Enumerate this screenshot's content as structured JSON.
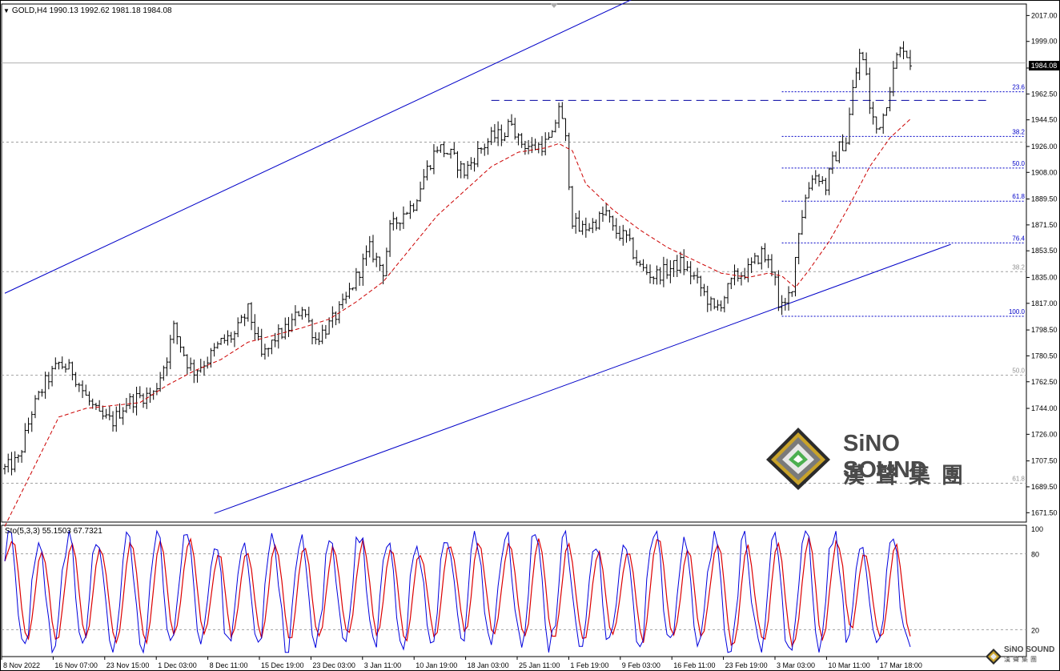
{
  "header": {
    "symbol": "GOLD,H4",
    "open": "1990.13",
    "high": "1992.62",
    "low": "1981.18",
    "close": "1984.08",
    "last_price_label": "1984.08"
  },
  "oscillator": {
    "label": "Sto(5,3,3) 55.1503 67.7321",
    "levels": [
      "100",
      "80",
      "20"
    ]
  },
  "colors": {
    "background": "#ffffff",
    "bars": "#000000",
    "moving_average": "#cc0000",
    "trend_channel": "#0000c8",
    "fib_lines": "#0000c8",
    "grid_fib": "#a0a0a0",
    "stoch_main": "#0000dd",
    "stoch_signal": "#dd0000"
  },
  "chart_data": {
    "type": "ohlc",
    "title": "",
    "xlabel": "",
    "ylabel": "",
    "ylim": [
      1665,
      2025
    ],
    "price_ticks": [
      "2017.00",
      "1999.00",
      "1980.50",
      "1962.50",
      "1944.50",
      "1926.00",
      "1908.00",
      "1889.50",
      "1871.50",
      "1853.50",
      "1835.00",
      "1817.00",
      "1798.50",
      "1780.50",
      "1762.50",
      "1744.00",
      "1726.00",
      "1707.50",
      "1689.50",
      "1671.50"
    ],
    "x_labels": [
      "8 Nov 2022",
      "16 Nov 07:00",
      "23 Nov 15:00",
      "1 Dec 03:00",
      "8 Dec 11:00",
      "15 Dec 19:00",
      "23 Dec 03:00",
      "3 Jan 11:00",
      "10 Jan 19:00",
      "18 Jan 03:00",
      "25 Jan 11:00",
      "1 Feb 19:00",
      "9 Feb 03:00",
      "16 Feb 11:00",
      "23 Feb 19:00",
      "3 Mar 03:00",
      "10 Mar 11:00",
      "17 Mar 18:00"
    ],
    "price_path": [
      [
        0,
        1702
      ],
      [
        4,
        1708
      ],
      [
        8,
        1742
      ],
      [
        12,
        1762
      ],
      [
        16,
        1775
      ],
      [
        20,
        1770
      ],
      [
        24,
        1752
      ],
      [
        28,
        1738
      ],
      [
        32,
        1735
      ],
      [
        36,
        1748
      ],
      [
        40,
        1752
      ],
      [
        44,
        1754
      ],
      [
        48,
        1780
      ],
      [
        50,
        1800
      ],
      [
        54,
        1776
      ],
      [
        56,
        1770
      ],
      [
        60,
        1778
      ],
      [
        64,
        1790
      ],
      [
        68,
        1795
      ],
      [
        72,
        1812
      ],
      [
        74,
        1798
      ],
      [
        76,
        1780
      ],
      [
        78,
        1785
      ],
      [
        80,
        1793
      ],
      [
        84,
        1800
      ],
      [
        88,
        1815
      ],
      [
        92,
        1792
      ],
      [
        96,
        1802
      ],
      [
        100,
        1815
      ],
      [
        104,
        1835
      ],
      [
        108,
        1855
      ],
      [
        112,
        1840
      ],
      [
        114,
        1868
      ],
      [
        118,
        1880
      ],
      [
        121,
        1886
      ],
      [
        124,
        1905
      ],
      [
        128,
        1926
      ],
      [
        132,
        1920
      ],
      [
        136,
        1908
      ],
      [
        140,
        1922
      ],
      [
        144,
        1932
      ],
      [
        148,
        1935
      ],
      [
        150,
        1945
      ],
      [
        152,
        1930
      ],
      [
        156,
        1925
      ],
      [
        160,
        1928
      ],
      [
        162,
        1932
      ],
      [
        164,
        1955
      ],
      [
        166,
        1930
      ],
      [
        168,
        1875
      ],
      [
        170,
        1868
      ],
      [
        174,
        1872
      ],
      [
        178,
        1880
      ],
      [
        180,
        1868
      ],
      [
        184,
        1862
      ],
      [
        188,
        1842
      ],
      [
        192,
        1836
      ],
      [
        196,
        1840
      ],
      [
        200,
        1845
      ],
      [
        204,
        1835
      ],
      [
        208,
        1820
      ],
      [
        210,
        1812
      ],
      [
        212,
        1818
      ],
      [
        216,
        1835
      ],
      [
        220,
        1840
      ],
      [
        224,
        1852
      ],
      [
        228,
        1838
      ],
      [
        229,
        1812
      ],
      [
        231,
        1815
      ],
      [
        233,
        1830
      ],
      [
        235,
        1868
      ],
      [
        237,
        1890
      ],
      [
        239,
        1906
      ],
      [
        241,
        1905
      ],
      [
        243,
        1898
      ],
      [
        245,
        1915
      ],
      [
        247,
        1925
      ],
      [
        249,
        1930
      ],
      [
        251,
        1965
      ],
      [
        253,
        1990
      ],
      [
        255,
        1978
      ],
      [
        256,
        1952
      ],
      [
        258,
        1938
      ],
      [
        260,
        1948
      ],
      [
        262,
        1968
      ],
      [
        264,
        1988
      ],
      [
        266,
        1996
      ],
      [
        268,
        1984
      ]
    ],
    "moving_average": [
      [
        0,
        1662
      ],
      [
        8,
        1700
      ],
      [
        16,
        1738
      ],
      [
        24,
        1744
      ],
      [
        32,
        1746
      ],
      [
        40,
        1748
      ],
      [
        48,
        1760
      ],
      [
        56,
        1770
      ],
      [
        64,
        1778
      ],
      [
        72,
        1790
      ],
      [
        80,
        1795
      ],
      [
        88,
        1800
      ],
      [
        96,
        1806
      ],
      [
        104,
        1818
      ],
      [
        112,
        1832
      ],
      [
        120,
        1855
      ],
      [
        128,
        1878
      ],
      [
        136,
        1895
      ],
      [
        144,
        1912
      ],
      [
        152,
        1922
      ],
      [
        160,
        1925
      ],
      [
        164,
        1928
      ],
      [
        168,
        1923
      ],
      [
        172,
        1900
      ],
      [
        180,
        1882
      ],
      [
        188,
        1868
      ],
      [
        196,
        1856
      ],
      [
        204,
        1847
      ],
      [
        212,
        1838
      ],
      [
        220,
        1835
      ],
      [
        226,
        1838
      ],
      [
        230,
        1836
      ],
      [
        234,
        1828
      ],
      [
        238,
        1840
      ],
      [
        244,
        1860
      ],
      [
        250,
        1885
      ],
      [
        256,
        1912
      ],
      [
        262,
        1932
      ],
      [
        268,
        1945
      ]
    ],
    "bar_count": 270,
    "fibonacci": {
      "levels": [
        "23.6",
        "38.2",
        "50.0",
        "61.8",
        "76.4",
        "100.0"
      ],
      "prices": [
        1964,
        1933,
        1911,
        1888,
        1859,
        1808
      ]
    },
    "grey_levels": {
      "labels": [
        "38.2",
        "50.0",
        "61.8"
      ],
      "prices": [
        1839,
        1767,
        1692
      ]
    },
    "reference_lines": {
      "dashed_high": 1958,
      "grey_close_line": 1984,
      "grey_mid_line": 1929
    },
    "channel": {
      "upper": [
        [
          0,
          1824
        ],
        [
          190,
          2033
        ]
      ],
      "lower": [
        [
          62,
          1671
        ],
        [
          280,
          1858
        ]
      ]
    },
    "stochastic": {
      "ylim": [
        0,
        100
      ],
      "levels": [
        80,
        20
      ]
    }
  }
}
